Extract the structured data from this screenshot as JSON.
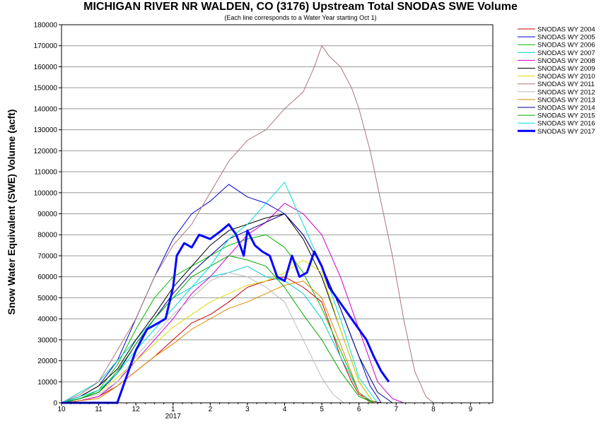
{
  "chart_data": {
    "type": "line",
    "title": "MICHIGAN RIVER NR WALDEN, CO (3176) Upstream Total SNODAS SWE Volume",
    "subtitle": "(Each line corresponds to a Water Year starting Oct 1)",
    "ylabel": "Snow Water Equivalent (SWE) Volume (acft)",
    "xlabel": "",
    "ylim": [
      0,
      180000
    ],
    "yticks": [
      "0",
      "10000",
      "20000",
      "30000",
      "40000",
      "50000",
      "60000",
      "70000",
      "80000",
      "90000",
      "100000",
      "110000",
      "120000",
      "130000",
      "140000",
      "150000",
      "160000",
      "170000",
      "180000"
    ],
    "xlim": [
      0,
      11.6
    ],
    "xticks": [
      {
        "pos": 0,
        "label": "10"
      },
      {
        "pos": 1,
        "label": "11"
      },
      {
        "pos": 2,
        "label": "12"
      },
      {
        "pos": 3,
        "label": "1"
      },
      {
        "pos": 4,
        "label": "2"
      },
      {
        "pos": 5,
        "label": "3"
      },
      {
        "pos": 6,
        "label": "4"
      },
      {
        "pos": 7,
        "label": "5"
      },
      {
        "pos": 8,
        "label": "6"
      },
      {
        "pos": 9,
        "label": "7"
      },
      {
        "pos": 10,
        "label": "8"
      },
      {
        "pos": 11,
        "label": "9"
      }
    ],
    "x_sublabel": {
      "pos": 3,
      "label": "2017"
    },
    "grid": "horizontal",
    "legend_position": "right",
    "series": [
      {
        "name": "SNODAS WY 2004",
        "color": "#cc0000",
        "width": 1,
        "x": [
          0,
          0.5,
          1.0,
          1.5,
          2.0,
          2.5,
          3.0,
          3.5,
          4.0,
          4.5,
          5.0,
          5.5,
          6.0,
          6.5,
          7.0,
          7.2,
          7.5,
          7.8,
          8.0,
          8.3,
          8.6
        ],
        "y": [
          0,
          1000,
          3000,
          8000,
          15000,
          22000,
          30000,
          38000,
          42000,
          48000,
          55000,
          58000,
          60000,
          55000,
          48000,
          38000,
          22000,
          10000,
          4000,
          1000,
          0
        ]
      },
      {
        "name": "SNODAS WY 2005",
        "color": "#0000cc",
        "width": 1,
        "x": [
          0,
          0.5,
          1.0,
          1.5,
          2.0,
          2.5,
          3.0,
          3.5,
          4.0,
          4.5,
          5.0,
          5.5,
          6.0,
          6.5,
          7.0,
          7.5,
          8.0,
          8.3,
          8.6
        ],
        "y": [
          0,
          3000,
          8000,
          20000,
          40000,
          60000,
          78000,
          90000,
          96000,
          104000,
          98000,
          95000,
          90000,
          80000,
          65000,
          45000,
          22000,
          8000,
          0
        ]
      },
      {
        "name": "SNODAS WY 2006",
        "color": "#00bb00",
        "width": 1,
        "x": [
          0,
          0.5,
          1.0,
          1.5,
          2.0,
          2.5,
          3.0,
          3.5,
          4.0,
          4.5,
          5.0,
          5.5,
          6.0,
          6.5,
          7.0,
          7.5,
          8.0,
          8.3
        ],
        "y": [
          0,
          2000,
          6000,
          18000,
          35000,
          50000,
          60000,
          65000,
          70000,
          75000,
          78000,
          80000,
          74000,
          62000,
          45000,
          25000,
          5000,
          0
        ]
      },
      {
        "name": "SNODAS WY 2007",
        "color": "#00cccc",
        "width": 1,
        "x": [
          0,
          0.5,
          1.0,
          1.5,
          2.0,
          2.5,
          3.0,
          3.5,
          4.0,
          4.5,
          5.0,
          5.5,
          6.0,
          6.5,
          7.0,
          7.5,
          8.0,
          8.4
        ],
        "y": [
          0,
          5000,
          10000,
          20000,
          30000,
          40000,
          50000,
          55000,
          60000,
          62000,
          65000,
          60000,
          58000,
          52000,
          40000,
          22000,
          5000,
          0
        ]
      },
      {
        "name": "SNODAS WY 2008",
        "color": "#cc00cc",
        "width": 1,
        "x": [
          0,
          0.5,
          1.0,
          1.5,
          2.0,
          2.5,
          3.0,
          3.5,
          4.0,
          4.5,
          5.0,
          5.5,
          6.0,
          6.5,
          7.0,
          7.5,
          8.0,
          8.5,
          8.9,
          9.2
        ],
        "y": [
          0,
          1000,
          3000,
          10000,
          20000,
          30000,
          40000,
          52000,
          60000,
          70000,
          80000,
          86000,
          95000,
          90000,
          80000,
          60000,
          35000,
          10000,
          2000,
          0
        ]
      },
      {
        "name": "SNODAS WY 2009",
        "color": "#000000",
        "width": 1,
        "x": [
          0,
          0.5,
          1.0,
          1.5,
          2.0,
          2.5,
          3.0,
          3.5,
          4.0,
          4.5,
          5.0,
          5.5,
          6.0,
          6.5,
          7.0,
          7.5,
          8.0,
          8.4
        ],
        "y": [
          0,
          3000,
          8000,
          16000,
          30000,
          42000,
          55000,
          65000,
          75000,
          82000,
          85000,
          88000,
          90000,
          78000,
          60000,
          35000,
          10000,
          0
        ]
      },
      {
        "name": "SNODAS WY 2010",
        "color": "#dddd00",
        "width": 1,
        "x": [
          0,
          0.5,
          1.0,
          1.5,
          2.0,
          2.5,
          3.0,
          3.5,
          4.0,
          4.5,
          5.0,
          5.5,
          6.0,
          6.5,
          7.0,
          7.5,
          8.0,
          8.4
        ],
        "y": [
          0,
          2000,
          5000,
          12000,
          20000,
          28000,
          36000,
          42000,
          48000,
          52000,
          56000,
          58000,
          62000,
          68000,
          62000,
          35000,
          10000,
          0
        ]
      },
      {
        "name": "SNODAS WY 2011",
        "color": "#aa7777",
        "width": 1,
        "x": [
          0,
          0.5,
          1.0,
          1.5,
          2.0,
          2.5,
          3.0,
          3.5,
          4.0,
          4.5,
          5.0,
          5.5,
          6.0,
          6.5,
          6.8,
          7.0,
          7.2,
          7.5,
          7.8,
          8.0,
          8.3,
          8.6,
          8.9,
          9.2,
          9.5,
          9.8,
          10.0
        ],
        "y": [
          0,
          4000,
          10000,
          25000,
          40000,
          60000,
          75000,
          85000,
          100000,
          115000,
          125000,
          130000,
          140000,
          148000,
          160000,
          170000,
          165000,
          160000,
          150000,
          140000,
          120000,
          95000,
          70000,
          40000,
          15000,
          3000,
          0
        ]
      },
      {
        "name": "SNODAS WY 2012",
        "color": "#bbbbbb",
        "width": 1,
        "x": [
          0,
          0.5,
          1.0,
          1.5,
          2.0,
          2.5,
          3.0,
          3.5,
          4.0,
          4.5,
          5.0,
          5.5,
          6.0,
          6.5,
          7.0,
          7.3,
          7.6
        ],
        "y": [
          0,
          2000,
          4000,
          10000,
          22000,
          32000,
          42000,
          50000,
          58000,
          62000,
          60000,
          55000,
          48000,
          30000,
          12000,
          4000,
          0
        ]
      },
      {
        "name": "SNODAS WY 2013",
        "color": "#dd8800",
        "width": 1,
        "x": [
          0,
          0.5,
          1.0,
          1.5,
          2.0,
          2.5,
          3.0,
          3.5,
          4.0,
          4.5,
          5.0,
          5.5,
          6.0,
          6.5,
          7.0,
          7.5,
          8.0,
          8.3
        ],
        "y": [
          0,
          1000,
          2000,
          8000,
          15000,
          22000,
          28000,
          35000,
          40000,
          45000,
          48000,
          52000,
          56000,
          58000,
          50000,
          28000,
          5000,
          0
        ]
      },
      {
        "name": "SNODAS WY 2014",
        "color": "#000088",
        "width": 1,
        "x": [
          0,
          0.5,
          1.0,
          1.5,
          2.0,
          2.5,
          3.0,
          3.5,
          4.0,
          4.5,
          5.0,
          5.5,
          6.0,
          6.5,
          7.0,
          7.5,
          8.0,
          8.5,
          8.9
        ],
        "y": [
          0,
          2000,
          5000,
          14000,
          28000,
          40000,
          52000,
          62000,
          70000,
          78000,
          82000,
          86000,
          90000,
          80000,
          65000,
          45000,
          22000,
          5000,
          0
        ]
      },
      {
        "name": "SNODAS WY 2015",
        "color": "#00aa00",
        "width": 1,
        "x": [
          0,
          0.5,
          1.0,
          1.5,
          2.0,
          2.5,
          3.0,
          3.5,
          4.0,
          4.5,
          5.0,
          5.5,
          6.0,
          6.5,
          7.0,
          7.5,
          8.0,
          8.4
        ],
        "y": [
          0,
          2000,
          5000,
          15000,
          28000,
          40000,
          50000,
          60000,
          65000,
          70000,
          68000,
          65000,
          55000,
          42000,
          30000,
          15000,
          3000,
          0
        ]
      },
      {
        "name": "SNODAS WY 2016",
        "color": "#00dddd",
        "width": 1,
        "x": [
          0,
          0.5,
          1.0,
          1.5,
          2.0,
          2.5,
          3.0,
          3.5,
          4.0,
          4.5,
          5.0,
          5.5,
          6.0,
          6.5,
          7.0,
          7.5,
          8.0,
          8.5
        ],
        "y": [
          0,
          3000,
          6000,
          14000,
          25000,
          35000,
          45000,
          55000,
          65000,
          78000,
          85000,
          95000,
          105000,
          85000,
          65000,
          40000,
          12000,
          0
        ]
      },
      {
        "name": "SNODAS WY 2017",
        "color": "#0000ff",
        "width": 3,
        "x": [
          0,
          1.5,
          1.7,
          2.0,
          2.3,
          2.6,
          2.8,
          3.0,
          3.1,
          3.3,
          3.5,
          3.7,
          4.0,
          4.3,
          4.5,
          4.7,
          4.9,
          5.0,
          5.2,
          5.4,
          5.6,
          5.8,
          6.0,
          6.2,
          6.4,
          6.6,
          6.8,
          7.0,
          7.2,
          7.4,
          7.6,
          7.8,
          8.0,
          8.2,
          8.4,
          8.6,
          8.8
        ],
        "y": [
          0,
          0,
          10000,
          25000,
          35000,
          38000,
          40000,
          55000,
          70000,
          76000,
          74000,
          80000,
          78000,
          82000,
          85000,
          80000,
          70000,
          82000,
          75000,
          72000,
          70000,
          60000,
          58000,
          70000,
          60000,
          62000,
          72000,
          65000,
          55000,
          50000,
          45000,
          40000,
          35000,
          30000,
          22000,
          15000,
          10000
        ]
      }
    ]
  }
}
